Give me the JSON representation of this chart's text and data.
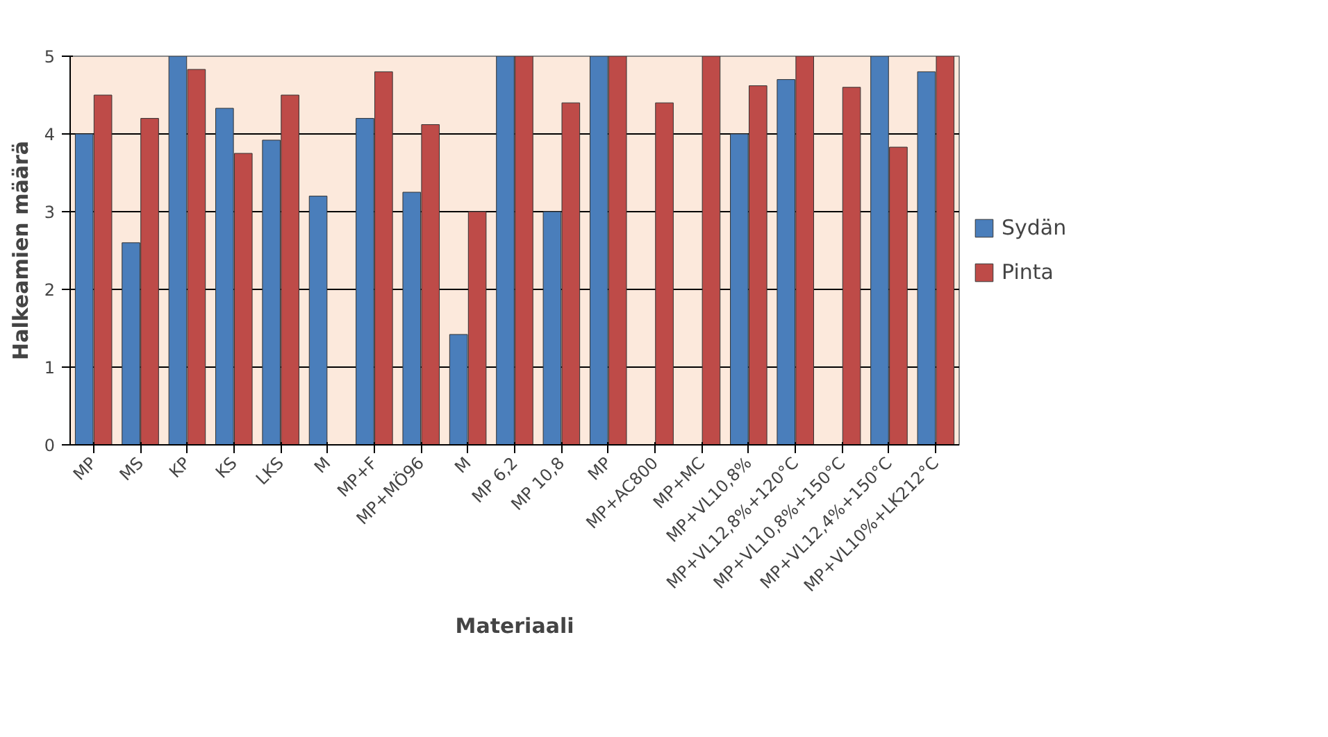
{
  "chart_data": {
    "type": "bar",
    "xlabel": "Materiaali",
    "ylabel": "Halkeamien määrä",
    "categories": [
      "MP",
      "MS",
      "KP",
      "KS",
      "LKS",
      "M",
      "MP+F",
      "MP+MÖ96",
      "M",
      "MP 6,2",
      "MP 10,8",
      "MP",
      "MP+AC800",
      "MP+MC",
      "MP+VL10,8%",
      "MP+VL12,8%+120°C",
      "MP+VL10,8%+150°C",
      "MP+VL12,4%+150°C",
      "MP+VL10%+LK212°C"
    ],
    "series": [
      {
        "name": "Sydän",
        "color": "#4a7ebb",
        "values": [
          4.0,
          2.6,
          5.0,
          4.33,
          3.92,
          3.2,
          4.2,
          3.25,
          1.42,
          5.0,
          3.0,
          5.0,
          null,
          null,
          4.0,
          4.7,
          null,
          5.0,
          4.8
        ]
      },
      {
        "name": "Pinta",
        "color": "#be4b48",
        "values": [
          4.5,
          4.2,
          4.83,
          3.75,
          4.5,
          null,
          4.8,
          4.12,
          3.0,
          5.0,
          4.4,
          5.0,
          4.4,
          5.0,
          4.62,
          5.0,
          4.6,
          3.83,
          5.0
        ]
      }
    ],
    "ylim": [
      0,
      5
    ],
    "yticks": [
      0,
      1,
      2,
      3,
      4,
      5
    ],
    "grid": "y",
    "legend": "right"
  }
}
